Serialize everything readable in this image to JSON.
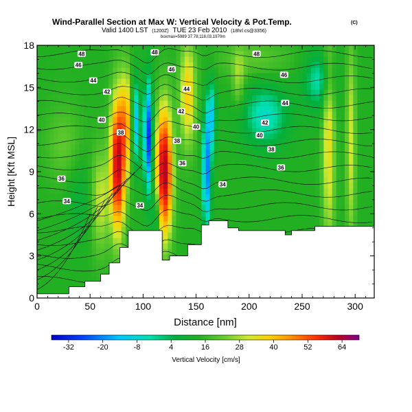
{
  "chart_data": {
    "type": "heatmap",
    "title": "Wind-Parallel Section at Max W: Vertical Velocity & Pot.Temp.",
    "title_mark": "(C)",
    "subtitle": "Valid 1400 LST",
    "subtitle_detail": "(1200Z)",
    "subtitle_date": "TUE 23 Feb 2010",
    "subtitle_tail": "(18hrl cs@3356)",
    "subtitle2": "boxmax=5989 37.78,118.03,1970m",
    "xlabel": "Distance [nm]",
    "ylabel": "Height [Kft MSL]",
    "xlim": [
      0,
      318
    ],
    "ylim": [
      0,
      18
    ],
    "x_ticks": [
      0,
      50,
      100,
      150,
      200,
      250,
      300
    ],
    "y_ticks": [
      0,
      3,
      6,
      9,
      12,
      15,
      18
    ],
    "colorbar_label": "Vertical Velocity [cm/s]",
    "colorbar_ticks": [
      -32,
      -20,
      -8,
      4,
      16,
      28,
      40,
      52,
      64
    ],
    "colorbar_range": [
      -38,
      70
    ],
    "colors": {
      "negative_strong": "#2020d0",
      "negative": "#00d8ff",
      "neutral": "#22b022",
      "weak_positive": "#8ee030",
      "positive": "#f0e020",
      "strong_positive": "#e00000",
      "max_positive": "#8a0088",
      "terrain": "#ffffff",
      "contour": "#000000"
    },
    "theta_contour_labels": [
      {
        "value": "48",
        "x": 42,
        "y": 17.4
      },
      {
        "value": "48",
        "x": 111,
        "y": 17.5
      },
      {
        "value": "48",
        "x": 207,
        "y": 17.4
      },
      {
        "value": "46",
        "x": 39,
        "y": 16.6
      },
      {
        "value": "46",
        "x": 127,
        "y": 16.3
      },
      {
        "value": "46",
        "x": 233,
        "y": 15.9
      },
      {
        "value": "44",
        "x": 53,
        "y": 15.5
      },
      {
        "value": "44",
        "x": 141,
        "y": 14.9
      },
      {
        "value": "44",
        "x": 234,
        "y": 13.9
      },
      {
        "value": "42",
        "x": 66,
        "y": 14.7
      },
      {
        "value": "42",
        "x": 136,
        "y": 13.3
      },
      {
        "value": "42",
        "x": 215,
        "y": 12.5
      },
      {
        "value": "40",
        "x": 61,
        "y": 12.7
      },
      {
        "value": "40",
        "x": 150,
        "y": 12.2
      },
      {
        "value": "40",
        "x": 210,
        "y": 11.6
      },
      {
        "value": "38",
        "x": 79,
        "y": 11.8
      },
      {
        "value": "38",
        "x": 132,
        "y": 11.2
      },
      {
        "value": "38",
        "x": 221,
        "y": 10.6
      },
      {
        "value": "36",
        "x": 137,
        "y": 9.6
      },
      {
        "value": "36",
        "x": 230,
        "y": 9.3
      },
      {
        "value": "36",
        "x": 23,
        "y": 8.5
      },
      {
        "value": "34",
        "x": 175,
        "y": 8.1
      },
      {
        "value": "34",
        "x": 28,
        "y": 6.9
      },
      {
        "value": "34",
        "x": 97,
        "y": 6.6
      }
    ],
    "terrain_profile_kft": [
      [
        0,
        0.3
      ],
      [
        30,
        0.3
      ],
      [
        30,
        0.8
      ],
      [
        45,
        0.8
      ],
      [
        45,
        1.2
      ],
      [
        60,
        1.2
      ],
      [
        60,
        1.7
      ],
      [
        68,
        1.7
      ],
      [
        68,
        2.5
      ],
      [
        78,
        2.5
      ],
      [
        78,
        3.6
      ],
      [
        86,
        3.6
      ],
      [
        86,
        4.8
      ],
      [
        118,
        4.8
      ],
      [
        118,
        2.7
      ],
      [
        125,
        2.7
      ],
      [
        125,
        3.0
      ],
      [
        142,
        3.0
      ],
      [
        142,
        3.8
      ],
      [
        155,
        3.8
      ],
      [
        155,
        5.2
      ],
      [
        162,
        5.2
      ],
      [
        162,
        5.5
      ],
      [
        180,
        5.5
      ],
      [
        180,
        5.0
      ],
      [
        190,
        5.0
      ],
      [
        190,
        4.8
      ],
      [
        234,
        4.8
      ],
      [
        234,
        4.5
      ],
      [
        240,
        4.5
      ],
      [
        240,
        4.8
      ],
      [
        262,
        4.8
      ],
      [
        262,
        5.1
      ],
      [
        318,
        5.1
      ]
    ]
  }
}
